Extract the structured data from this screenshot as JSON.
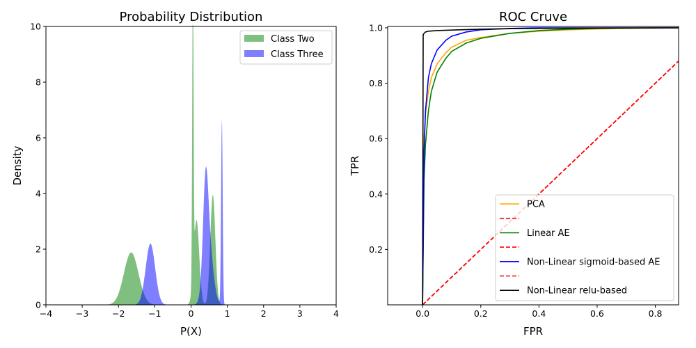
{
  "chart_data": [
    {
      "type": "area",
      "title": "Probability Distribution",
      "xlabel": "P(X)",
      "ylabel": "Density",
      "xlim": [
        -4,
        4
      ],
      "ylim": [
        0,
        10
      ],
      "xticks": [
        "−4",
        "−3",
        "−2",
        "−1",
        "0",
        "1",
        "2",
        "3",
        "4"
      ],
      "yticks": [
        "0",
        "2",
        "4",
        "6",
        "8",
        "10"
      ],
      "legend_position": "top-right",
      "grid": false,
      "series": [
        {
          "name": "Class Two",
          "color": "#008000",
          "opacity": 0.5,
          "components": [
            {
              "mu": -1.65,
              "sigma": 0.2,
              "peak": 1.88
            },
            {
              "mu": 0.05,
              "sigma": 0.018,
              "peak": 10.5
            },
            {
              "mu": 0.15,
              "sigma": 0.075,
              "peak": 3.05
            },
            {
              "mu": 0.6,
              "sigma": 0.07,
              "peak": 3.95
            }
          ]
        },
        {
          "name": "Class Three",
          "color": "#0000ff",
          "opacity": 0.5,
          "components": [
            {
              "mu": -1.12,
              "sigma": 0.13,
              "peak": 2.2
            },
            {
              "mu": 0.4,
              "sigma": 0.07,
              "peak": 3.05
            },
            {
              "mu": 0.48,
              "sigma": 0.12,
              "peak": 2.3
            },
            {
              "mu": 0.85,
              "sigma": 0.022,
              "peak": 6.6
            }
          ]
        }
      ]
    },
    {
      "type": "line",
      "title": "ROC Cruve",
      "xlabel": "FPR",
      "ylabel": "TPR",
      "xlim": [
        -0.12,
        0.88
      ],
      "ylim": [
        0,
        1.005
      ],
      "xticks": [
        0.0,
        0.2,
        0.4,
        0.6,
        0.8
      ],
      "yticks": [
        0.2,
        0.4,
        0.6,
        0.8,
        1.0
      ],
      "xtick_labels": [
        "0.0",
        "0.2",
        "0.4",
        "0.6",
        "0.8"
      ],
      "ytick_labels": [
        "0.2",
        "0.4",
        "0.6",
        "0.8",
        "1.0"
      ],
      "legend_position": "lower-right",
      "grid": false,
      "series": [
        {
          "name": "PCA",
          "color": "#ffa500",
          "style": "solid",
          "x": [
            0,
            0.005,
            0.01,
            0.02,
            0.03,
            0.05,
            0.08,
            0.1,
            0.15,
            0.2,
            0.3,
            0.4,
            0.5,
            0.6,
            0.7,
            0.8,
            0.88
          ],
          "y": [
            0,
            0.6,
            0.69,
            0.77,
            0.82,
            0.87,
            0.91,
            0.93,
            0.955,
            0.965,
            0.98,
            0.988,
            0.993,
            0.996,
            0.998,
            0.999,
            1.0
          ]
        },
        {
          "name": "",
          "color": "#ff0000",
          "style": "dashed",
          "x": [
            0,
            0.88
          ],
          "y": [
            0,
            0.88
          ]
        },
        {
          "name": "Linear AE",
          "color": "#008000",
          "style": "solid",
          "x": [
            0,
            0.005,
            0.01,
            0.02,
            0.03,
            0.05,
            0.08,
            0.1,
            0.15,
            0.2,
            0.3,
            0.4,
            0.5,
            0.6,
            0.7,
            0.8,
            0.88
          ],
          "y": [
            0,
            0.45,
            0.58,
            0.7,
            0.77,
            0.84,
            0.89,
            0.915,
            0.945,
            0.962,
            0.98,
            0.99,
            0.995,
            0.998,
            0.999,
            1.0,
            1.0
          ]
        },
        {
          "name": "",
          "color": "#ff0000",
          "style": "dashed",
          "x": [
            0,
            0.88
          ],
          "y": [
            0,
            0.88
          ]
        },
        {
          "name": "Non-Linear sigmoid-based AE",
          "color": "#0000ff",
          "style": "solid",
          "x": [
            0,
            0.005,
            0.01,
            0.02,
            0.03,
            0.05,
            0.08,
            0.1,
            0.15,
            0.2,
            0.3,
            0.4,
            0.5,
            0.88
          ],
          "y": [
            0,
            0.55,
            0.7,
            0.82,
            0.87,
            0.92,
            0.955,
            0.97,
            0.985,
            0.993,
            0.998,
            1.0,
            1.0,
            1.0
          ]
        },
        {
          "name": "",
          "color": "#ff0000",
          "style": "dashed",
          "x": [
            0,
            0.88
          ],
          "y": [
            0,
            0.88
          ]
        },
        {
          "name": "Non-Linear relu-based",
          "color": "#000000",
          "style": "solid",
          "x": [
            0,
            0.002,
            0.005,
            0.01,
            0.02,
            0.05,
            0.1,
            0.2,
            0.3,
            0.5,
            0.88
          ],
          "y": [
            0,
            0.975,
            0.98,
            0.985,
            0.988,
            0.99,
            0.992,
            0.995,
            0.997,
            0.999,
            1.0
          ]
        }
      ]
    }
  ]
}
